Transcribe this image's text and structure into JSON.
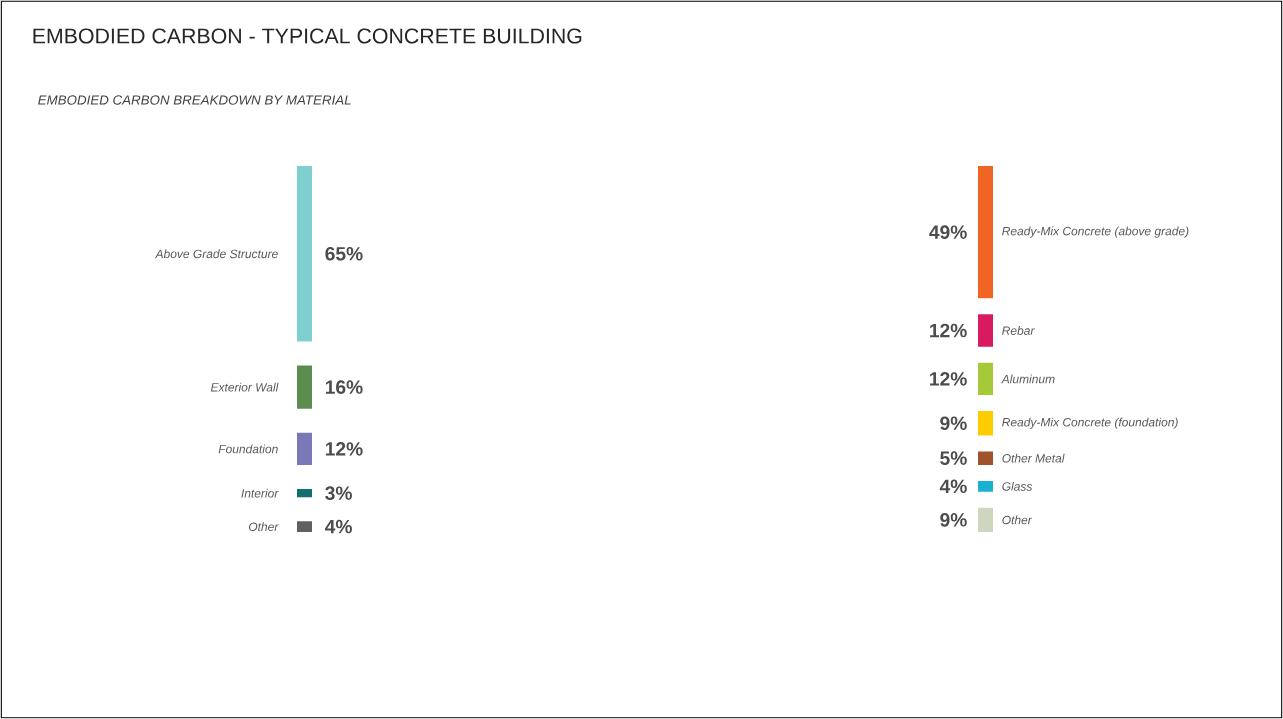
{
  "chart_data": [
    {
      "type": "other",
      "title": "EMBODIED CARBON - TYPICAL CONCRETE BUILDING",
      "subtitle": "EMBODIED CARBON BREAKDOWN BY MATERIAL",
      "categories": [
        "Above Grade Structure",
        "Exterior Wall",
        "Foundation",
        "Interior",
        "Other"
      ],
      "values": [
        65,
        16,
        12,
        3,
        4
      ],
      "value_labels": [
        "65%",
        "16%",
        "12%",
        "3%",
        "4%"
      ],
      "colors": [
        "#7fcfd0",
        "#5b8c50",
        "#7b78b8",
        "#126d6e",
        "#606060"
      ]
    },
    {
      "type": "other",
      "categories": [
        "Ready-Mix Concrete (above grade)",
        "Rebar",
        "Aluminum",
        "Ready-Mix Concrete (foundation)",
        "Other Metal",
        "Glass",
        "Other"
      ],
      "values": [
        49,
        12,
        12,
        9,
        5,
        4,
        9
      ],
      "value_labels": [
        "49%",
        "12%",
        "12%",
        "9%",
        "5%",
        "4%",
        "9%"
      ],
      "colors": [
        "#f06424",
        "#d81b60",
        "#a6c93a",
        "#ffcc00",
        "#a0522d",
        "#1ab0d0",
        "#cfd6c0"
      ]
    }
  ]
}
